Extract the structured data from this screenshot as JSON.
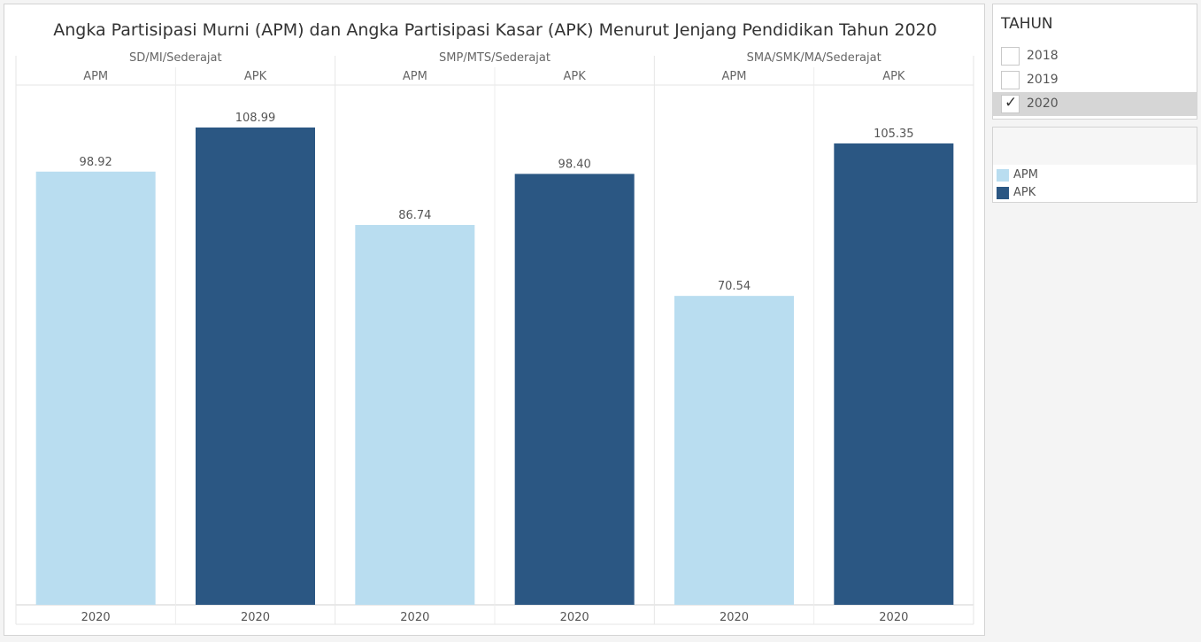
{
  "colors": {
    "APM": "#b9ddf0",
    "APK": "#2b5783"
  },
  "filter": {
    "title": "TAHUN",
    "items": [
      {
        "label": "2018",
        "checked": false
      },
      {
        "label": "2019",
        "checked": false
      },
      {
        "label": "2020",
        "checked": true
      }
    ],
    "checkmark": "✓"
  },
  "legend": {
    "items": [
      {
        "label": "APM",
        "color": "#b9ddf0"
      },
      {
        "label": "APK",
        "color": "#2b5783"
      }
    ]
  },
  "chart_data": {
    "type": "bar",
    "title": "Angka Partisipasi Murni (APM) dan Angka Partisipasi Kasar (APK) Menurut Jenjang Pendidikan Tahun 2020",
    "ylim": [
      0,
      120
    ],
    "groups": [
      {
        "name": "SD/MI/Sederajat",
        "bars": [
          {
            "measure": "APM",
            "year": "2020",
            "value": 98.92,
            "label": "98.92"
          },
          {
            "measure": "APK",
            "year": "2020",
            "value": 108.99,
            "label": "108.99"
          }
        ]
      },
      {
        "name": "SMP/MTS/Sederajat",
        "bars": [
          {
            "measure": "APM",
            "year": "2020",
            "value": 86.74,
            "label": "86.74"
          },
          {
            "measure": "APK",
            "year": "2020",
            "value": 98.4,
            "label": "98.40"
          }
        ]
      },
      {
        "name": "SMA/SMK/MA/Sederajat",
        "bars": [
          {
            "measure": "APM",
            "year": "2020",
            "value": 70.54,
            "label": "70.54"
          },
          {
            "measure": "APK",
            "year": "2020",
            "value": 105.35,
            "label": "105.35"
          }
        ]
      }
    ]
  }
}
